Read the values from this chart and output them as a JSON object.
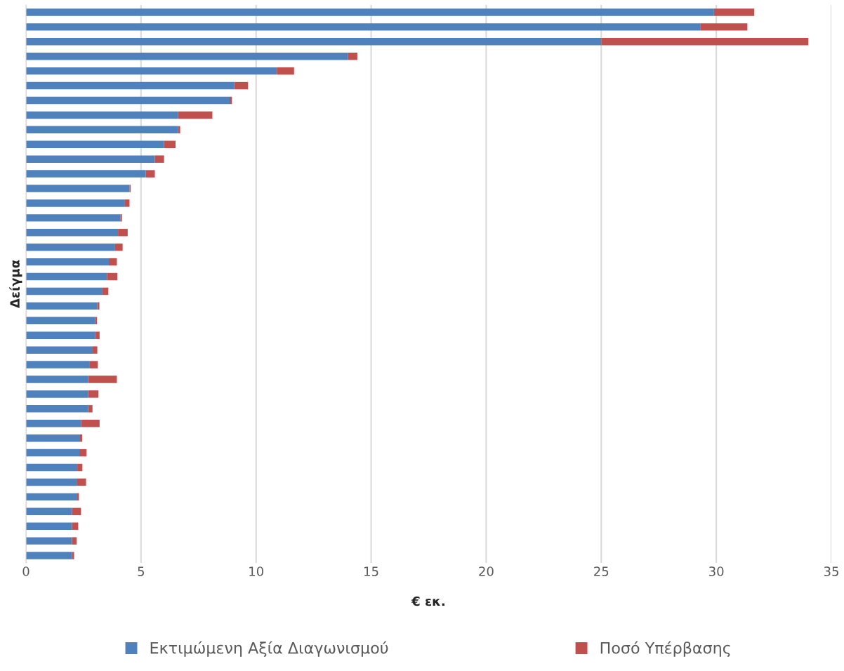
{
  "chart_data": {
    "type": "bar",
    "orientation": "horizontal",
    "stacked": true,
    "xlabel": "€ εκ.",
    "ylabel": "Δείγμα",
    "categories": [
      null,
      null,
      null,
      null,
      null,
      null,
      null,
      null,
      null,
      null,
      null,
      null,
      null,
      null,
      null,
      null,
      null,
      null,
      null,
      null,
      null,
      null,
      null,
      null,
      null,
      null,
      null,
      null,
      null,
      null,
      null,
      null,
      null,
      null,
      null,
      null,
      null,
      null
    ],
    "series": [
      {
        "name": "Εκτιμώμενη Αξία Διαγωνισμού",
        "color": "#4f81bd",
        "values": [
          29.9,
          29.3,
          25.0,
          14.0,
          10.9,
          9.05,
          8.85,
          6.6,
          6.6,
          6.0,
          5.6,
          5.2,
          4.5,
          4.3,
          4.1,
          4.0,
          3.85,
          3.6,
          3.52,
          3.3,
          3.1,
          3.0,
          3.0,
          2.9,
          2.75,
          2.7,
          2.7,
          2.7,
          2.4,
          2.35,
          2.32,
          2.23,
          2.2,
          2.2,
          2.0,
          2.0,
          2.0,
          2.0
        ]
      },
      {
        "name": "Ποσό Υπέρβασης",
        "color": "#c0504d",
        "values": [
          1.75,
          2.05,
          9.0,
          0.4,
          0.75,
          0.6,
          0.1,
          1.5,
          0.1,
          0.5,
          0.4,
          0.4,
          0.05,
          0.2,
          0.07,
          0.42,
          0.35,
          0.35,
          0.45,
          0.28,
          0.09,
          0.09,
          0.2,
          0.2,
          0.37,
          1.25,
          0.45,
          0.19,
          0.8,
          0.09,
          0.31,
          0.22,
          0.41,
          0.1,
          0.39,
          0.27,
          0.2,
          0.09
        ]
      }
    ],
    "xlim": [
      0,
      35
    ],
    "xticks": [
      0,
      5,
      10,
      15,
      20,
      25,
      30,
      35
    ],
    "grid": "x",
    "legend": "bottom",
    "tick_labels": "x"
  }
}
